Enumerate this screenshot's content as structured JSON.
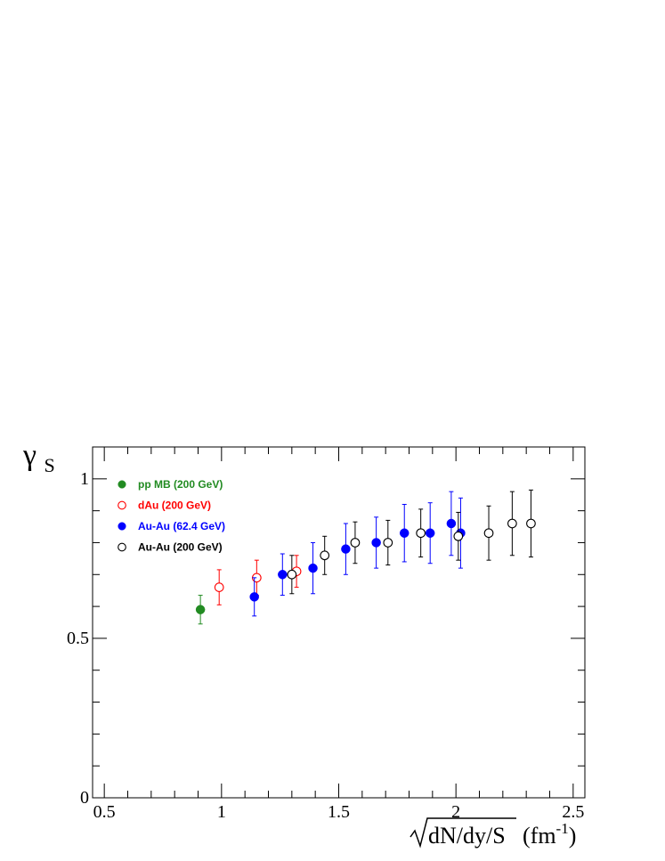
{
  "chart_data": {
    "type": "scatter",
    "xlabel": "√dN/dy/S (fm⁻¹)",
    "xlabel_parts": {
      "radical": "dN/dy/S",
      "unit_pre": "(fm",
      "unit_sup": "-1",
      "unit_post": ")"
    },
    "ylabel_parts": {
      "main": "γ",
      "sub": "S"
    },
    "xlim": [
      0.45,
      2.55
    ],
    "ylim": [
      0,
      1.1
    ],
    "x_ticks": [
      0.5,
      1,
      1.5,
      2,
      2.5
    ],
    "x_tick_labels": [
      "0.5",
      "1",
      "1.5",
      "2",
      "2.5"
    ],
    "y_ticks": [
      0,
      0.5,
      1
    ],
    "y_tick_labels": [
      "0",
      "0.5",
      "1"
    ],
    "grid": false,
    "legend_position": "top-left",
    "series": [
      {
        "name": "pp MB (200 GeV)",
        "color": "#228b22",
        "marker": "filled-circle",
        "points": [
          {
            "x": 0.91,
            "y": 0.59,
            "err": 0.045
          }
        ]
      },
      {
        "name": "dAu (200 GeV)",
        "color": "#ff0000",
        "marker": "open-circle",
        "points": [
          {
            "x": 0.99,
            "y": 0.66,
            "err": 0.055
          },
          {
            "x": 1.15,
            "y": 0.69,
            "err": 0.055
          },
          {
            "x": 1.32,
            "y": 0.71,
            "err": 0.05
          }
        ]
      },
      {
        "name": "Au-Au (62.4 GeV)",
        "color": "#0000ff",
        "marker": "filled-circle",
        "points": [
          {
            "x": 1.14,
            "y": 0.63,
            "err": 0.06
          },
          {
            "x": 1.26,
            "y": 0.7,
            "err": 0.065
          },
          {
            "x": 1.39,
            "y": 0.72,
            "err": 0.08
          },
          {
            "x": 1.53,
            "y": 0.78,
            "err": 0.08
          },
          {
            "x": 1.66,
            "y": 0.8,
            "err": 0.08
          },
          {
            "x": 1.78,
            "y": 0.83,
            "err": 0.09
          },
          {
            "x": 1.89,
            "y": 0.83,
            "err": 0.095
          },
          {
            "x": 1.98,
            "y": 0.86,
            "err": 0.1
          },
          {
            "x": 2.02,
            "y": 0.83,
            "err": 0.11
          }
        ]
      },
      {
        "name": "Au-Au (200 GeV)",
        "color": "#000000",
        "marker": "open-circle",
        "points": [
          {
            "x": 1.3,
            "y": 0.7,
            "err": 0.06
          },
          {
            "x": 1.44,
            "y": 0.76,
            "err": 0.06
          },
          {
            "x": 1.57,
            "y": 0.8,
            "err": 0.065
          },
          {
            "x": 1.71,
            "y": 0.8,
            "err": 0.07
          },
          {
            "x": 1.85,
            "y": 0.83,
            "err": 0.075
          },
          {
            "x": 2.01,
            "y": 0.82,
            "err": 0.075
          },
          {
            "x": 2.14,
            "y": 0.83,
            "err": 0.085
          },
          {
            "x": 2.24,
            "y": 0.86,
            "err": 0.1
          },
          {
            "x": 2.32,
            "y": 0.86,
            "err": 0.105
          }
        ]
      }
    ]
  }
}
